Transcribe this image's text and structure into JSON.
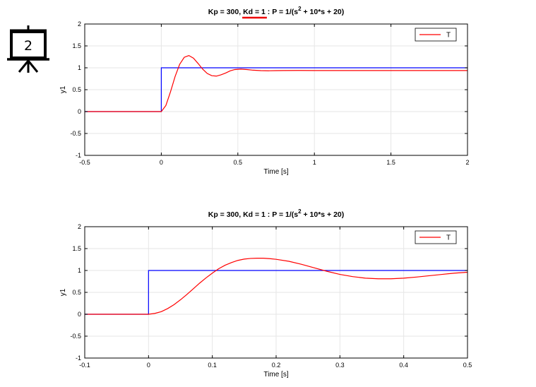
{
  "badge": {
    "number": "2",
    "icon": "presentation-board-icon"
  },
  "colors": {
    "reference": "#0000ff",
    "response": "#ff0000",
    "grid": "#e6e6e6",
    "axes": "#000000",
    "highlight": "#ee0000"
  },
  "chart_data": [
    {
      "type": "line",
      "title_parts": {
        "a": "Kp = 300, ",
        "b": "Kd = 1 ",
        "c": ": P = 1/(s",
        "sup": "2",
        "d": " + 10*s + 20)"
      },
      "xlabel": "Time [s]",
      "ylabel": "y1",
      "xlim": [
        -0.5,
        2
      ],
      "ylim": [
        -1,
        2
      ],
      "xticks": [
        -0.5,
        0,
        0.5,
        1,
        1.5,
        2
      ],
      "xtick_labels": [
        "-0.5",
        "0",
        "0.5",
        "1",
        "1.5",
        "2"
      ],
      "yticks": [
        -1,
        -0.5,
        0,
        0.5,
        1,
        1.5,
        2
      ],
      "ytick_labels": [
        "-1",
        "-0.5",
        "0",
        "0.5",
        "1",
        "1.5",
        "2"
      ],
      "grid": true,
      "legend": {
        "placement": "top-right",
        "entries": [
          "T"
        ]
      },
      "highlight": "Kd = 1",
      "series": [
        {
          "name": "",
          "color": "#0000ff",
          "x": [
            -0.5,
            0,
            0,
            2
          ],
          "y": [
            0,
            0,
            1,
            1
          ]
        },
        {
          "name": "T",
          "color": "#ff0000",
          "x": [
            -0.5,
            0,
            0.03,
            0.06,
            0.09,
            0.12,
            0.15,
            0.18,
            0.21,
            0.24,
            0.27,
            0.3,
            0.33,
            0.36,
            0.39,
            0.42,
            0.45,
            0.48,
            0.52,
            0.56,
            0.6,
            0.65,
            0.7,
            0.75,
            0.8,
            0.9,
            1.0,
            1.2,
            1.5,
            1.8,
            2.0
          ],
          "y": [
            0,
            0,
            0.14,
            0.45,
            0.8,
            1.08,
            1.24,
            1.28,
            1.22,
            1.1,
            0.97,
            0.87,
            0.82,
            0.81,
            0.84,
            0.88,
            0.93,
            0.96,
            0.97,
            0.96,
            0.945,
            0.935,
            0.932,
            0.935,
            0.938,
            0.94,
            0.938,
            0.937,
            0.937,
            0.937,
            0.937
          ]
        }
      ]
    },
    {
      "type": "line",
      "title_parts": {
        "a": "Kp = 300, ",
        "b": "Kd = 1 ",
        "c": ": P = 1/(s",
        "sup": "2",
        "d": " + 10*s + 20)"
      },
      "xlabel": "Time [s]",
      "ylabel": "y1",
      "xlim": [
        -0.1,
        0.5
      ],
      "ylim": [
        -1,
        2
      ],
      "xticks": [
        -0.1,
        0,
        0.1,
        0.2,
        0.3,
        0.4,
        0.5
      ],
      "xtick_labels": [
        "-0.1",
        "0",
        "0.1",
        "0.2",
        "0.3",
        "0.4",
        "0.5"
      ],
      "yticks": [
        -1,
        -0.5,
        0,
        0.5,
        1,
        1.5,
        2
      ],
      "ytick_labels": [
        "-1",
        "-0.5",
        "0",
        "0.5",
        "1",
        "1.5",
        "2"
      ],
      "grid": true,
      "legend": {
        "placement": "top-right",
        "entries": [
          "T"
        ]
      },
      "highlight": "",
      "series": [
        {
          "name": "",
          "color": "#0000ff",
          "x": [
            -0.1,
            0,
            0,
            0.5
          ],
          "y": [
            0,
            0,
            1,
            1
          ]
        },
        {
          "name": "T",
          "color": "#ff0000",
          "x": [
            -0.1,
            0,
            0.01,
            0.02,
            0.03,
            0.04,
            0.05,
            0.06,
            0.07,
            0.08,
            0.09,
            0.1,
            0.11,
            0.12,
            0.13,
            0.14,
            0.15,
            0.16,
            0.17,
            0.18,
            0.19,
            0.2,
            0.22,
            0.24,
            0.26,
            0.28,
            0.3,
            0.32,
            0.34,
            0.36,
            0.38,
            0.4,
            0.42,
            0.44,
            0.46,
            0.48,
            0.5
          ],
          "y": [
            0,
            0,
            0.02,
            0.06,
            0.13,
            0.22,
            0.33,
            0.45,
            0.58,
            0.71,
            0.83,
            0.94,
            1.04,
            1.12,
            1.18,
            1.23,
            1.26,
            1.275,
            1.28,
            1.28,
            1.27,
            1.255,
            1.21,
            1.14,
            1.06,
            0.98,
            0.91,
            0.86,
            0.825,
            0.81,
            0.81,
            0.825,
            0.85,
            0.88,
            0.91,
            0.94,
            0.96
          ]
        }
      ]
    }
  ]
}
